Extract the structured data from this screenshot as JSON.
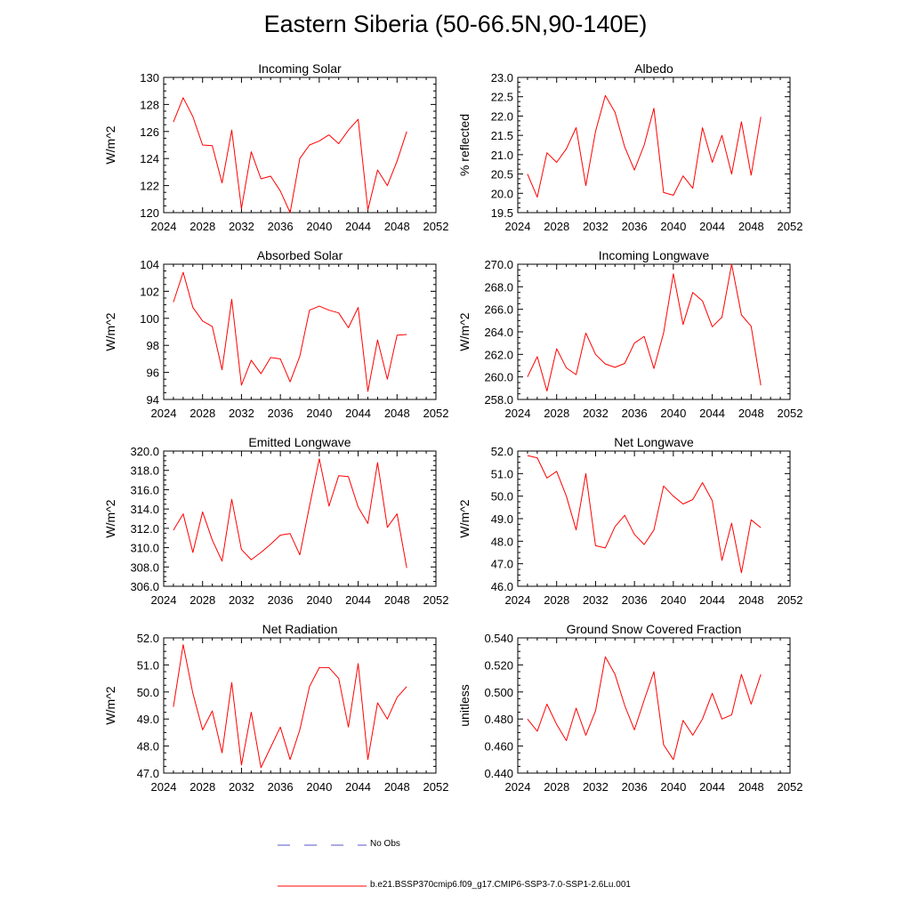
{
  "title": "Eastern Siberia (50-66.5N,90-140E)",
  "legend": {
    "obs_label": "No Obs",
    "obs_color": "#5555cc",
    "model_label": "b.e21.BSSP370cmip6.f09_g17.CMIP6-SSP3-7.0-SSP1-2.6Lu.001",
    "model_color": "#ff0000"
  },
  "chart_data": [
    {
      "type": "line",
      "title": "Incoming Solar",
      "xlabel": "",
      "ylabel": "W/m^2",
      "xlim": [
        2024,
        2052
      ],
      "ylim": [
        120,
        130
      ],
      "xticks": [
        "2024",
        "2028",
        "2032",
        "2036",
        "2040",
        "2044",
        "2048",
        "2052"
      ],
      "yticks": [
        "120",
        "122",
        "124",
        "126",
        "128",
        "130"
      ],
      "x": [
        2025,
        2026,
        2027,
        2028,
        2029,
        2030,
        2031,
        2032,
        2033,
        2034,
        2035,
        2036,
        2037,
        2038,
        2039,
        2040,
        2041,
        2042,
        2043,
        2044,
        2045,
        2046,
        2047,
        2048,
        2049
      ],
      "series": [
        {
          "values": [
            126.7,
            128.5,
            127.1,
            125.0,
            124.95,
            122.2,
            126.1,
            120.3,
            124.5,
            122.5,
            122.7,
            121.6,
            120.0,
            124.0,
            125.0,
            125.3,
            125.75,
            125.1,
            126.1,
            126.9,
            120.2,
            123.15,
            122.0,
            123.8,
            126.0
          ]
        }
      ]
    },
    {
      "type": "line",
      "title": "Albedo",
      "xlabel": "",
      "ylabel": "% reflected",
      "xlim": [
        2024,
        2052
      ],
      "ylim": [
        19.5,
        23.0
      ],
      "xticks": [
        "2024",
        "2028",
        "2032",
        "2036",
        "2040",
        "2044",
        "2048",
        "2052"
      ],
      "yticks": [
        "19.5",
        "20.0",
        "20.5",
        "21.0",
        "21.5",
        "22.0",
        "22.5",
        "23.0"
      ],
      "x": [
        2025,
        2026,
        2027,
        2028,
        2029,
        2030,
        2031,
        2032,
        2033,
        2034,
        2035,
        2036,
        2037,
        2038,
        2039,
        2040,
        2041,
        2042,
        2043,
        2044,
        2045,
        2046,
        2047,
        2048,
        2049
      ],
      "series": [
        {
          "values": [
            20.5,
            19.9,
            21.05,
            20.8,
            21.15,
            21.7,
            20.2,
            21.6,
            22.53,
            22.1,
            21.2,
            20.6,
            21.25,
            22.2,
            20.02,
            19.95,
            20.45,
            20.13,
            21.7,
            20.8,
            21.5,
            20.5,
            21.85,
            20.47,
            21.98
          ]
        }
      ]
    },
    {
      "type": "line",
      "title": "Absorbed Solar",
      "xlabel": "",
      "ylabel": "W/m^2",
      "xlim": [
        2024,
        2052
      ],
      "ylim": [
        94,
        104
      ],
      "xticks": [
        "2024",
        "2028",
        "2032",
        "2036",
        "2040",
        "2044",
        "2048",
        "2052"
      ],
      "yticks": [
        "94",
        "96",
        "98",
        "100",
        "102",
        "104"
      ],
      "x": [
        2025,
        2026,
        2027,
        2028,
        2029,
        2030,
        2031,
        2032,
        2033,
        2034,
        2035,
        2036,
        2037,
        2038,
        2039,
        2040,
        2041,
        2042,
        2043,
        2044,
        2045,
        2046,
        2047,
        2048,
        2049
      ],
      "series": [
        {
          "values": [
            101.2,
            103.4,
            100.8,
            99.8,
            99.4,
            96.2,
            101.4,
            95.05,
            96.9,
            95.9,
            97.1,
            97.0,
            95.3,
            97.2,
            100.6,
            100.9,
            100.6,
            100.4,
            99.3,
            100.8,
            94.6,
            98.4,
            95.5,
            98.75,
            98.8
          ]
        }
      ]
    },
    {
      "type": "line",
      "title": "Incoming Longwave",
      "xlabel": "",
      "ylabel": "W/m^2",
      "xlim": [
        2024,
        2052
      ],
      "ylim": [
        258.0,
        270.0
      ],
      "xticks": [
        "2024",
        "2028",
        "2032",
        "2036",
        "2040",
        "2044",
        "2048",
        "2052"
      ],
      "yticks": [
        "258.0",
        "260.0",
        "262.0",
        "264.0",
        "266.0",
        "268.0",
        "270.0"
      ],
      "x": [
        2025,
        2026,
        2027,
        2028,
        2029,
        2030,
        2031,
        2032,
        2033,
        2034,
        2035,
        2036,
        2037,
        2038,
        2039,
        2040,
        2041,
        2042,
        2043,
        2044,
        2045,
        2046,
        2047,
        2048,
        2049
      ],
      "series": [
        {
          "values": [
            260.0,
            261.8,
            258.75,
            262.5,
            260.8,
            260.2,
            263.9,
            262.0,
            261.15,
            260.85,
            261.2,
            263.0,
            263.6,
            260.75,
            263.9,
            269.15,
            264.65,
            267.5,
            266.75,
            264.45,
            265.3,
            270.0,
            265.5,
            264.5,
            259.25
          ]
        }
      ]
    },
    {
      "type": "line",
      "title": "Emitted Longwave",
      "xlabel": "",
      "ylabel": "W/m^2",
      "xlim": [
        2024,
        2052
      ],
      "ylim": [
        306.0,
        320.0
      ],
      "xticks": [
        "2024",
        "2028",
        "2032",
        "2036",
        "2040",
        "2044",
        "2048",
        "2052"
      ],
      "yticks": [
        "306.0",
        "308.0",
        "310.0",
        "312.0",
        "314.0",
        "316.0",
        "318.0",
        "320.0"
      ],
      "x": [
        2025,
        2026,
        2027,
        2028,
        2029,
        2030,
        2031,
        2032,
        2033,
        2034,
        2035,
        2036,
        2037,
        2038,
        2039,
        2040,
        2041,
        2042,
        2043,
        2044,
        2045,
        2046,
        2047,
        2048,
        2049
      ],
      "series": [
        {
          "values": [
            311.8,
            313.5,
            309.5,
            313.7,
            310.8,
            308.6,
            315.0,
            309.8,
            308.75,
            309.5,
            310.35,
            311.3,
            311.45,
            309.25,
            314.3,
            319.2,
            314.3,
            317.45,
            317.35,
            314.2,
            312.5,
            318.8,
            312.1,
            313.5,
            307.9
          ]
        }
      ]
    },
    {
      "type": "line",
      "title": "Net Longwave",
      "xlabel": "",
      "ylabel": "W/m^2",
      "xlim": [
        2024,
        2052
      ],
      "ylim": [
        46.0,
        52.0
      ],
      "xticks": [
        "2024",
        "2028",
        "2032",
        "2036",
        "2040",
        "2044",
        "2048",
        "2052"
      ],
      "yticks": [
        "46.0",
        "47.0",
        "48.0",
        "49.0",
        "50.0",
        "51.0",
        "52.0"
      ],
      "x": [
        2025,
        2026,
        2027,
        2028,
        2029,
        2030,
        2031,
        2032,
        2033,
        2034,
        2035,
        2036,
        2037,
        2038,
        2039,
        2040,
        2041,
        2042,
        2043,
        2044,
        2045,
        2046,
        2047,
        2048,
        2049
      ],
      "series": [
        {
          "values": [
            51.8,
            51.7,
            50.8,
            51.1,
            50.0,
            48.5,
            51.0,
            47.8,
            47.7,
            48.65,
            49.15,
            48.3,
            47.85,
            48.5,
            50.45,
            50.0,
            49.65,
            49.85,
            50.6,
            49.8,
            47.15,
            48.8,
            46.6,
            48.95,
            48.6
          ]
        }
      ]
    },
    {
      "type": "line",
      "title": "Net Radiation",
      "xlabel": "",
      "ylabel": "W/m^2",
      "xlim": [
        2024,
        2052
      ],
      "ylim": [
        47.0,
        52.0
      ],
      "xticks": [
        "2024",
        "2028",
        "2032",
        "2036",
        "2040",
        "2044",
        "2048",
        "2052"
      ],
      "yticks": [
        "47.0",
        "48.0",
        "49.0",
        "50.0",
        "51.0",
        "52.0"
      ],
      "x": [
        2025,
        2026,
        2027,
        2028,
        2029,
        2030,
        2031,
        2032,
        2033,
        2034,
        2035,
        2036,
        2037,
        2038,
        2039,
        2040,
        2041,
        2042,
        2043,
        2044,
        2045,
        2046,
        2047,
        2048,
        2049
      ],
      "series": [
        {
          "values": [
            49.45,
            51.75,
            49.95,
            48.6,
            49.3,
            47.75,
            50.35,
            47.3,
            49.25,
            47.2,
            47.95,
            48.7,
            47.5,
            48.6,
            50.2,
            50.9,
            50.9,
            50.5,
            48.7,
            51.05,
            47.5,
            49.6,
            49.0,
            49.8,
            50.2
          ]
        }
      ]
    },
    {
      "type": "line",
      "title": "Ground Snow Covered Fraction",
      "xlabel": "",
      "ylabel": "unitless",
      "xlim": [
        2024,
        2052
      ],
      "ylim": [
        0.44,
        0.54
      ],
      "xticks": [
        "2024",
        "2028",
        "2032",
        "2036",
        "2040",
        "2044",
        "2048",
        "2052"
      ],
      "yticks": [
        "0.440",
        "0.460",
        "0.480",
        "0.500",
        "0.520",
        "0.540"
      ],
      "x": [
        2025,
        2026,
        2027,
        2028,
        2029,
        2030,
        2031,
        2032,
        2033,
        2034,
        2035,
        2036,
        2037,
        2038,
        2039,
        2040,
        2041,
        2042,
        2043,
        2044,
        2045,
        2046,
        2047,
        2048,
        2049
      ],
      "series": [
        {
          "values": [
            0.48,
            0.471,
            0.491,
            0.476,
            0.464,
            0.488,
            0.468,
            0.486,
            0.526,
            0.513,
            0.49,
            0.472,
            0.494,
            0.515,
            0.461,
            0.45,
            0.479,
            0.468,
            0.48,
            0.499,
            0.48,
            0.483,
            0.513,
            0.491,
            0.513
          ]
        }
      ]
    }
  ]
}
